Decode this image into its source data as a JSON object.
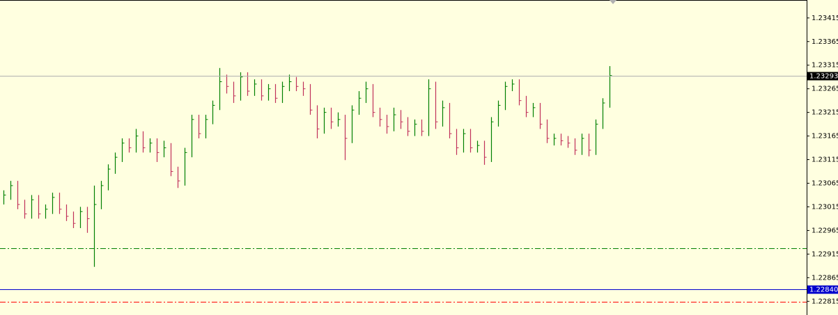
{
  "chart_data": {
    "type": "ohlc",
    "ylim": [
      1.22786,
      1.23453
    ],
    "yticks": [
      1.23415,
      1.23365,
      1.23315,
      1.23265,
      1.23215,
      1.23165,
      1.23115,
      1.23065,
      1.23015,
      1.22965,
      1.22915,
      1.22865,
      1.22815
    ],
    "up_color": "#008000",
    "down_color": "#c0305a",
    "high": [
      1.2305,
      1.2307,
      1.2307,
      1.2303,
      1.2304,
      1.2304,
      1.2302,
      1.23045,
      1.23045,
      1.2302,
      1.23005,
      1.23015,
      1.23015,
      1.2306,
      1.2307,
      1.23105,
      1.2313,
      1.2316,
      1.2316,
      1.2318,
      1.23175,
      1.2316,
      1.2316,
      1.23155,
      1.2315,
      1.231,
      1.2314,
      1.2321,
      1.2321,
      1.2321,
      1.2324,
      1.23309,
      1.23295,
      1.2328,
      1.233,
      1.233,
      1.23285,
      1.23285,
      1.23275,
      1.23275,
      1.2328,
      1.23295,
      1.2329,
      1.2328,
      1.23275,
      1.2323,
      1.23225,
      1.23225,
      1.23215,
      1.2321,
      1.2323,
      1.2326,
      1.2328,
      1.23275,
      1.23225,
      1.2321,
      1.23225,
      1.2322,
      1.23205,
      1.232,
      1.232,
      1.23285,
      1.2328,
      1.2324,
      1.23235,
      1.2318,
      1.2318,
      1.2318,
      1.23155,
      1.23155,
      1.23205,
      1.2324,
      1.2328,
      1.23285,
      1.23285,
      1.2325,
      1.23235,
      1.23235,
      1.232,
      1.2317,
      1.2317,
      1.23165,
      1.2316,
      1.2317,
      1.2317,
      1.232,
      1.23245,
      1.23313
    ],
    "low": [
      1.2302,
      1.2303,
      1.2301,
      1.2299,
      1.2299,
      1.2299,
      1.2299,
      1.23,
      1.23,
      1.22985,
      1.2297,
      1.2297,
      1.2296,
      1.22888,
      1.2301,
      1.2305,
      1.23085,
      1.2311,
      1.2313,
      1.2313,
      1.2313,
      1.2313,
      1.2311,
      1.2312,
      1.2308,
      1.23055,
      1.2306,
      1.2312,
      1.2316,
      1.2316,
      1.2319,
      1.2322,
      1.23255,
      1.23235,
      1.2324,
      1.2325,
      1.2325,
      1.2324,
      1.2324,
      1.23235,
      1.23235,
      1.2326,
      1.2326,
      1.2325,
      1.2321,
      1.2316,
      1.2317,
      1.2318,
      1.23185,
      1.23114,
      1.2315,
      1.2321,
      1.23235,
      1.23205,
      1.23185,
      1.2317,
      1.23175,
      1.2318,
      1.23165,
      1.23165,
      1.23165,
      1.23165,
      1.2318,
      1.23185,
      1.2316,
      1.23125,
      1.2313,
      1.2313,
      1.2313,
      1.23104,
      1.2311,
      1.23185,
      1.2322,
      1.2326,
      1.2323,
      1.23205,
      1.23205,
      1.2318,
      1.2315,
      1.23145,
      1.23145,
      1.2314,
      1.23125,
      1.23125,
      1.23122,
      1.23125,
      1.2318,
      1.23225
    ],
    "close": [
      1.2304,
      1.2306,
      1.2302,
      1.23,
      1.2303,
      1.23,
      1.2301,
      1.23035,
      1.2301,
      1.22995,
      1.2298,
      1.23005,
      1.2299,
      1.2302,
      1.2306,
      1.23095,
      1.2312,
      1.2315,
      1.2314,
      1.23165,
      1.2314,
      1.2315,
      1.2313,
      1.2314,
      1.2309,
      1.2307,
      1.2313,
      1.232,
      1.2317,
      1.232,
      1.2323,
      1.2328,
      1.2327,
      1.2325,
      1.2329,
      1.2326,
      1.23275,
      1.2325,
      1.23265,
      1.23245,
      1.2327,
      1.2328,
      1.2327,
      1.23265,
      1.2322,
      1.2318,
      1.23215,
      1.23195,
      1.232,
      1.2316,
      1.2322,
      1.23245,
      1.23265,
      1.23215,
      1.232,
      1.23185,
      1.2321,
      1.23195,
      1.23175,
      1.2319,
      1.23175,
      1.23265,
      1.23195,
      1.23225,
      1.2317,
      1.2314,
      1.2317,
      1.2314,
      1.23145,
      1.2312,
      1.23195,
      1.2323,
      1.2327,
      1.23275,
      1.2324,
      1.23215,
      1.23225,
      1.2319,
      1.2316,
      1.2316,
      1.23155,
      1.2315,
      1.23135,
      1.2316,
      1.23135,
      1.2319,
      1.23235,
      1.23293
    ],
    "current_price": 1.23293,
    "current_color": "#b0b0b0",
    "current_box": "#000000",
    "levels": [
      {
        "value": 1.2284,
        "label": "1.22840",
        "color": "#0000cc",
        "style": "solid"
      },
      {
        "value": 1.22928,
        "color": "#008000",
        "style": "dashdot"
      },
      {
        "value": 1.22814,
        "color": "#ff0000",
        "style": "dashdot"
      }
    ]
  }
}
